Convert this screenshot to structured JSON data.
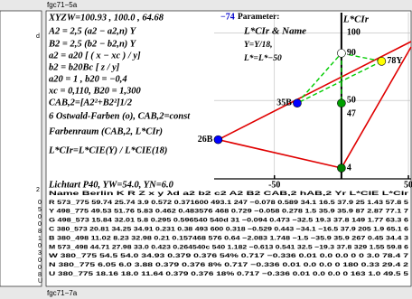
{
  "header": {
    "top_label": "fgc71−5a",
    "bottom_label": "fgc71−7a"
  },
  "left_fragments": [
    "d",
    "2",
    "0",
    "5",
    "0",
    "0",
    "8",
    "1",
    "0",
    "3",
    "0",
    "0",
    "8",
    "U"
  ],
  "formulas": [
    "XYZW=100.93 , 100.0 , 64.68",
    "A2 = 2,5 (a2 − a2,n) Y",
    "B2 = 2,5 (b2 − b2,n) Y",
    "a2 = a20 [ ( x − xc ) / y]",
    "b2 = b20Bc [ z / y]",
    "a20 = 1 , b20 = −0,4",
    "xc = 0,110, B20 = 1,300",
    "CAB,2=[A2²+B2²]1/2",
    "6 Ostwald-Farben (o), CAB,2=const",
    "Farbenraum (CAB,2, L*CIr)",
    "L*CIr=L*CIE(Y) / L*CIE(18)"
  ],
  "light_source": "Lichtart P40, YW=54.0, YN=6.0",
  "table": {
    "header": "Name Berlin   K      R      Z      x      y      λd    a2     b2     c2    A2     B2   CAB,2 hAB,2 Yr  L*CIE L*CIr",
    "rows": [
      "R  573_775 59.74 25.74 3.9   0.572 0.371600 493.1 247 −0.078 0.589 34.1  16.5 37.9  25  1.43 57.8 5",
      "Y  498_775 49.53 51.76 5.83  0.462 0.483576 468 0.729 −0.058 0.278  1.5  35.9 35.9  87  2.87 77.1 7",
      "G  498_573 15.84 32.01 5.8   0.295 0.596540 540d 31 −0.094 0.473 −32.5 19.3 37.8 149  1.77 63.3 6",
      "C  380_573 20.81 34.25 34.91 0.231 0.38 493 600 0.318 −0.529 0.443 −34.1 −16.5 37.9 205 1.9 65.1 6",
      "B  380_498 11.02 8.23 32.98  0.21  0.157468 576 0.64 −2.083 1.748 −1.5 −35.9 35.9 267 0.45 34.4 3",
      "M  573_498 44.71 27.98 33.0  0.423 0.264540c 540 1.182 −0.613 0.541 32.5 −19.3 37.8 329 1.55 59.8 6",
      "W  380_775 54.5 54.0 34.93   0.379 0.376 54%  0.717 −0.336 0.01  0.0  0.0   0    0   3.0  78.4 7",
      "N  380_775 6.05 6.0 3.88     0.379 0.376 8%   0.717 −0.336 0.01  0.0  0.0   0  180  0.33 29.4 2",
      "U  380_775 18.16 18.0 11.64  0.379 0.376 18%  0.717 −0.336 0.01  0.0  0.0   0  163  1.0  49.5 5"
    ]
  },
  "chart_data": {
    "type": "scatter",
    "corner_value": "−74",
    "y_axis_label": "L*CIr",
    "legend": [
      "Parameter:",
      "L*CIr & Name",
      "Y=Y/18,",
      "L*=L*−50"
    ],
    "xlim": [
      -95,
      52
    ],
    "ylim": [
      -8,
      115
    ],
    "xticks": [
      -50,
      50
    ],
    "yticks": [
      50,
      100
    ],
    "grid": true,
    "x": [
      0,
      30,
      0,
      -33,
      -92,
      0
    ],
    "values": [
      85,
      79,
      48,
      48,
      21,
      0
    ],
    "labels": [
      "90",
      "78Y",
      "47",
      "35B",
      "26B",
      "4"
    ],
    "colors": [
      "#ffffff",
      "#ffff00",
      "#00a000",
      "#0000ff",
      "#0000ff",
      "#008000"
    ]
  }
}
